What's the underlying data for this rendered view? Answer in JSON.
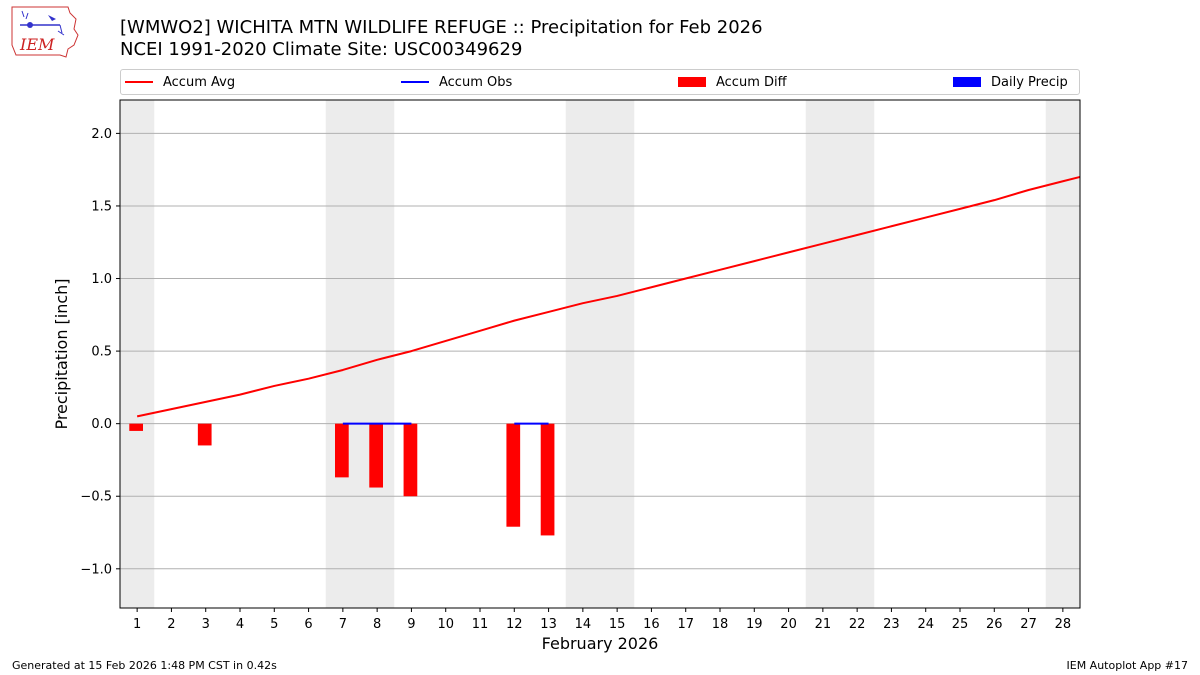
{
  "header": {
    "title_line1": "[WMWO2] WICHITA MTN WILDLIFE REFUGE :: Precipitation for Feb 2026",
    "title_line2": "NCEI 1991-2020 Climate Site: USC00349629",
    "logo_text": "IEM"
  },
  "legend": {
    "items": [
      {
        "label": "Accum Avg",
        "kind": "line",
        "color": "#ff0000"
      },
      {
        "label": "Accum Obs",
        "kind": "line",
        "color": "#0000ff"
      },
      {
        "label": "Accum Diff",
        "kind": "patch",
        "color": "#ff0000"
      },
      {
        "label": "Daily Precip",
        "kind": "patch",
        "color": "#0000ff"
      }
    ]
  },
  "footer": {
    "left": "Generated at 15 Feb 2026 1:48 PM CST in 0.42s",
    "right": "IEM Autoplot App #17"
  },
  "chart_data": {
    "type": "line",
    "title": "[WMWO2] WICHITA MTN WILDLIFE REFUGE :: Precipitation for Feb 2026",
    "subtitle": "NCEI 1991-2020 Climate Site: USC00349629",
    "xlabel": "February 2026",
    "ylabel": "Precipitation [inch]",
    "xlim": [
      0.5,
      28.5
    ],
    "ylim": [
      -1.27,
      2.23
    ],
    "yticks": [
      -1.0,
      -0.5,
      0.0,
      0.5,
      1.0,
      1.5,
      2.0
    ],
    "ytick_labels": [
      "−1.0",
      "−0.5",
      "0.0",
      "0.5",
      "1.0",
      "1.5",
      "2.0"
    ],
    "days": [
      1,
      2,
      3,
      4,
      5,
      6,
      7,
      8,
      9,
      10,
      11,
      12,
      13,
      14,
      15,
      16,
      17,
      18,
      19,
      20,
      21,
      22,
      23,
      24,
      25,
      26,
      27,
      28
    ],
    "weekend_spans": [
      [
        0.5,
        1.5
      ],
      [
        6.5,
        8.5
      ],
      [
        13.5,
        15.5
      ],
      [
        20.5,
        22.5
      ],
      [
        27.5,
        28.5
      ]
    ],
    "grid": "y",
    "legend_position": "top",
    "series": [
      {
        "name": "Accum Avg",
        "type": "line",
        "color": "#ff0000",
        "x": [
          1,
          2,
          3,
          4,
          5,
          6,
          7,
          8,
          9,
          10,
          11,
          12,
          13,
          14,
          15,
          16,
          17,
          18,
          19,
          20,
          21,
          22,
          23,
          24,
          25,
          26,
          27,
          28,
          28.5
        ],
        "values": [
          0.05,
          0.1,
          0.15,
          0.2,
          0.26,
          0.31,
          0.37,
          0.44,
          0.5,
          0.57,
          0.64,
          0.71,
          0.77,
          0.83,
          0.88,
          0.94,
          1.0,
          1.06,
          1.12,
          1.18,
          1.24,
          1.3,
          1.36,
          1.42,
          1.48,
          1.54,
          1.61,
          1.67,
          1.7
        ]
      },
      {
        "name": "Accum Obs",
        "type": "line",
        "color": "#0000ff",
        "segments": [
          {
            "x": [
              7,
              8,
              9
            ],
            "values": [
              0.0,
              0.0,
              0.0
            ]
          },
          {
            "x": [
              12,
              13
            ],
            "values": [
              0.0,
              0.0
            ]
          }
        ]
      },
      {
        "name": "Accum Diff",
        "type": "bar",
        "color": "#ff0000",
        "x": [
          1,
          3,
          7,
          8,
          9,
          12,
          13
        ],
        "values": [
          -0.05,
          -0.15,
          -0.37,
          -0.44,
          -0.5,
          -0.71,
          -0.77
        ]
      },
      {
        "name": "Daily Precip",
        "type": "bar",
        "color": "#0000ff",
        "x": [],
        "values": []
      }
    ]
  }
}
